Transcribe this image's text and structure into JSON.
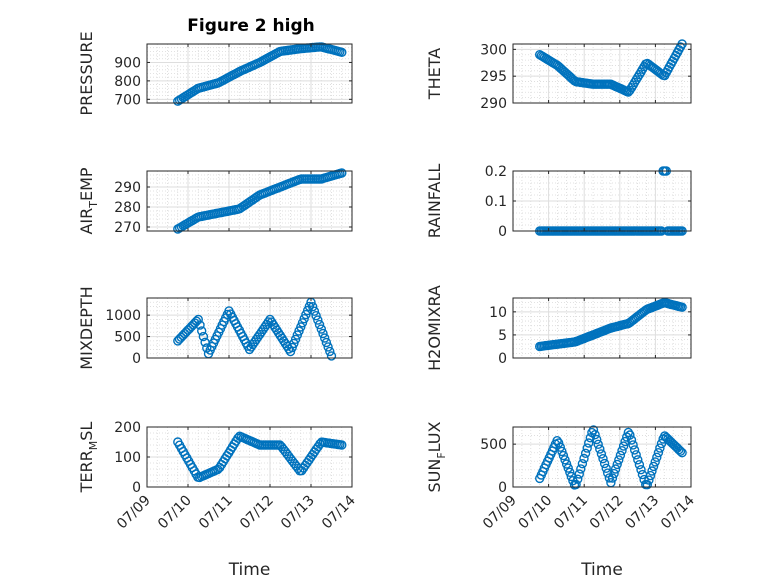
{
  "figure": {
    "title": "Figure 2 high",
    "marker_color": "#0072BD",
    "x_tick_labels": [
      "07/09",
      "07/10",
      "07/11",
      "07/12",
      "07/13",
      "07/14"
    ],
    "xlabel": "Time"
  },
  "chart_data": [
    {
      "type": "scatter",
      "ylabel": "PRESSURE",
      "title": "Figure 2 high",
      "xlim": [
        "2023-07-09",
        "2023-07-14"
      ],
      "ylim": [
        680,
        1000
      ],
      "yticks": [
        700,
        800,
        900
      ],
      "ytick_labels": [
        "700",
        "800",
        "900"
      ],
      "x": [
        "07/09 18:00",
        "07/10 06:00",
        "07/10 18:00",
        "07/11 06:00",
        "07/11 18:00",
        "07/12 06:00",
        "07/12 18:00",
        "07/13 06:00",
        "07/13 18:00"
      ],
      "y": [
        690,
        760,
        790,
        850,
        900,
        960,
        975,
        985,
        955
      ],
      "grid": true
    },
    {
      "type": "scatter",
      "ylabel": "THETA",
      "ylim": [
        290,
        301
      ],
      "yticks": [
        290,
        295,
        300
      ],
      "ytick_labels": [
        "290",
        "295",
        "300"
      ],
      "x": [
        "07/09 18:00",
        "07/10 06:00",
        "07/10 18:00",
        "07/11 06:00",
        "07/11 18:00",
        "07/12 06:00",
        "07/12 18:00",
        "07/13 06:00",
        "07/13 18:00"
      ],
      "y": [
        299,
        297,
        294,
        293.5,
        293.5,
        292,
        297.5,
        295,
        301
      ],
      "grid": true
    },
    {
      "type": "scatter",
      "ylabel": "AIR_TEMP",
      "ylim": [
        268,
        298
      ],
      "yticks": [
        270,
        280,
        290
      ],
      "ytick_labels": [
        "270",
        "280",
        "290"
      ],
      "x": [
        "07/09 18:00",
        "07/10 06:00",
        "07/10 18:00",
        "07/11 06:00",
        "07/11 18:00",
        "07/12 06:00",
        "07/12 18:00",
        "07/13 06:00",
        "07/13 18:00"
      ],
      "y": [
        269,
        275,
        277,
        279,
        286,
        290,
        294,
        294,
        297
      ],
      "grid": true
    },
    {
      "type": "scatter",
      "ylabel": "RAINFALL",
      "ylim": [
        0,
        0.2
      ],
      "yticks": [
        0,
        0.1,
        0.2
      ],
      "ytick_labels": [
        "0",
        "0.1",
        "0.2"
      ],
      "x": [
        "07/09 18:00",
        "07/13 06:00",
        "07/13 18:00"
      ],
      "y": [
        0,
        0.2,
        0
      ],
      "grid": true
    },
    {
      "type": "scatter",
      "ylabel": "MIXDEPTH",
      "ylim": [
        0,
        1400
      ],
      "yticks": [
        0,
        500,
        1000
      ],
      "ytick_labels": [
        "0",
        "500",
        "1000"
      ],
      "x": [
        "07/09 18:00",
        "07/10 06:00",
        "07/10 12:00",
        "07/11 00:00",
        "07/11 12:00",
        "07/12 00:00",
        "07/12 12:00",
        "07/13 00:00",
        "07/13 12:00"
      ],
      "y": [
        400,
        900,
        100,
        1100,
        200,
        900,
        150,
        1300,
        50
      ],
      "grid": true
    },
    {
      "type": "scatter",
      "ylabel": "H2OMIXRA",
      "ylim": [
        0,
        13
      ],
      "yticks": [
        0,
        5,
        10
      ],
      "ytick_labels": [
        "0",
        "5",
        "10"
      ],
      "x": [
        "07/09 18:00",
        "07/10 06:00",
        "07/10 18:00",
        "07/11 06:00",
        "07/11 18:00",
        "07/12 06:00",
        "07/12 18:00",
        "07/13 06:00",
        "07/13 18:00"
      ],
      "y": [
        2.5,
        3,
        3.5,
        5,
        6.5,
        7.5,
        10.5,
        12,
        11
      ],
      "grid": true
    },
    {
      "type": "scatter",
      "ylabel": "TERR_MSL",
      "ylim": [
        0,
        200
      ],
      "yticks": [
        0,
        100,
        200
      ],
      "ytick_labels": [
        "0",
        "100",
        "200"
      ],
      "x": [
        "07/09 18:00",
        "07/10 06:00",
        "07/10 18:00",
        "07/11 06:00",
        "07/11 18:00",
        "07/12 06:00",
        "07/12 18:00",
        "07/13 06:00",
        "07/13 18:00"
      ],
      "y": [
        150,
        30,
        60,
        170,
        140,
        140,
        50,
        150,
        140
      ],
      "grid": true
    },
    {
      "type": "scatter",
      "ylabel": "SUN_FLUX",
      "ylim": [
        0,
        700
      ],
      "yticks": [
        0,
        500
      ],
      "ytick_labels": [
        "0",
        "500"
      ],
      "x": [
        "07/09 18:00",
        "07/10 06:00",
        "07/10 18:00",
        "07/11 06:00",
        "07/11 18:00",
        "07/12 06:00",
        "07/12 18:00",
        "07/13 06:00",
        "07/13 18:00"
      ],
      "y": [
        100,
        550,
        0,
        680,
        50,
        650,
        0,
        600,
        400
      ],
      "grid": true
    }
  ]
}
